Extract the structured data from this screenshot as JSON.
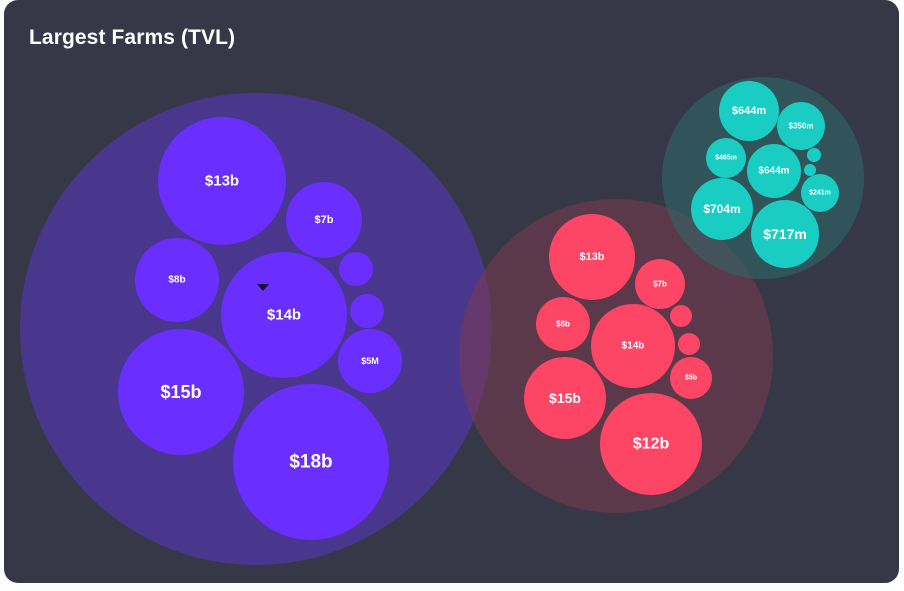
{
  "title": "Largest Farms (TVL)",
  "chart_data": {
    "type": "bubble-pack",
    "title": "Largest Farms (TVL)",
    "groups": [
      {
        "id": "purple",
        "color": "#6a2eff",
        "bg_color": "#5936c9",
        "bubbles": [
          {
            "label": "$13b",
            "value": 13
          },
          {
            "label": "$7b",
            "value": 7
          },
          {
            "label": "$8b",
            "value": 8
          },
          {
            "label": "",
            "value": 1
          },
          {
            "label": "$14b",
            "value": 14
          },
          {
            "label": "",
            "value": 1
          },
          {
            "label": "$5M",
            "value": 0.005
          },
          {
            "label": "$15b",
            "value": 15
          },
          {
            "label": "$18b",
            "value": 18
          }
        ]
      },
      {
        "id": "red",
        "color": "#fd4566",
        "bg_color": "#7a3a4c",
        "bubbles": [
          {
            "label": "$13b",
            "value": 13
          },
          {
            "label": "$7b",
            "value": 7
          },
          {
            "label": "$8b",
            "value": 8
          },
          {
            "label": "",
            "value": 1
          },
          {
            "label": "$14b",
            "value": 14
          },
          {
            "label": "",
            "value": 1
          },
          {
            "label": "$5b",
            "value": 5
          },
          {
            "label": "$15b",
            "value": 15
          },
          {
            "label": "$12b",
            "value": 12
          }
        ]
      },
      {
        "id": "teal",
        "color": "#19cdc3",
        "bg_color": "#2d6a69",
        "bubbles": [
          {
            "label": "$644m",
            "value": 644
          },
          {
            "label": "$350m",
            "value": 350
          },
          {
            "label": "$465m",
            "value": 465
          },
          {
            "label": "$644m",
            "value": 644
          },
          {
            "label": "",
            "value": 10
          },
          {
            "label": "",
            "value": 5
          },
          {
            "label": "$241m",
            "value": 241
          },
          {
            "label": "$704m",
            "value": 704
          },
          {
            "label": "$717m",
            "value": 717
          }
        ]
      }
    ]
  }
}
